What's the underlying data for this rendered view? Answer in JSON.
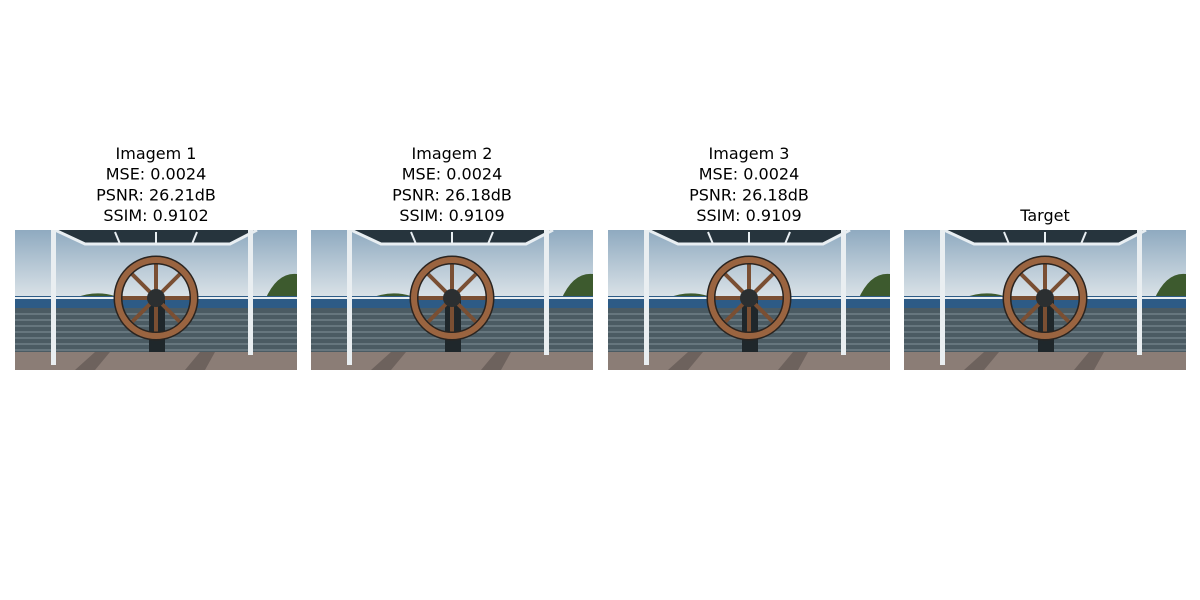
{
  "panels": [
    {
      "title": [
        "Imagem 1",
        "MSE: 0.0024",
        "PSNR: 26.21dB",
        "SSIM: 0.9102"
      ]
    },
    {
      "title": [
        "Imagem 2",
        "MSE: 0.0024",
        "PSNR: 26.18dB",
        "SSIM: 0.9109"
      ]
    },
    {
      "title": [
        "Imagem 3",
        "MSE: 0.0024",
        "PSNR: 26.18dB",
        "SSIM: 0.9109"
      ]
    },
    {
      "title": [
        "Target"
      ]
    }
  ]
}
